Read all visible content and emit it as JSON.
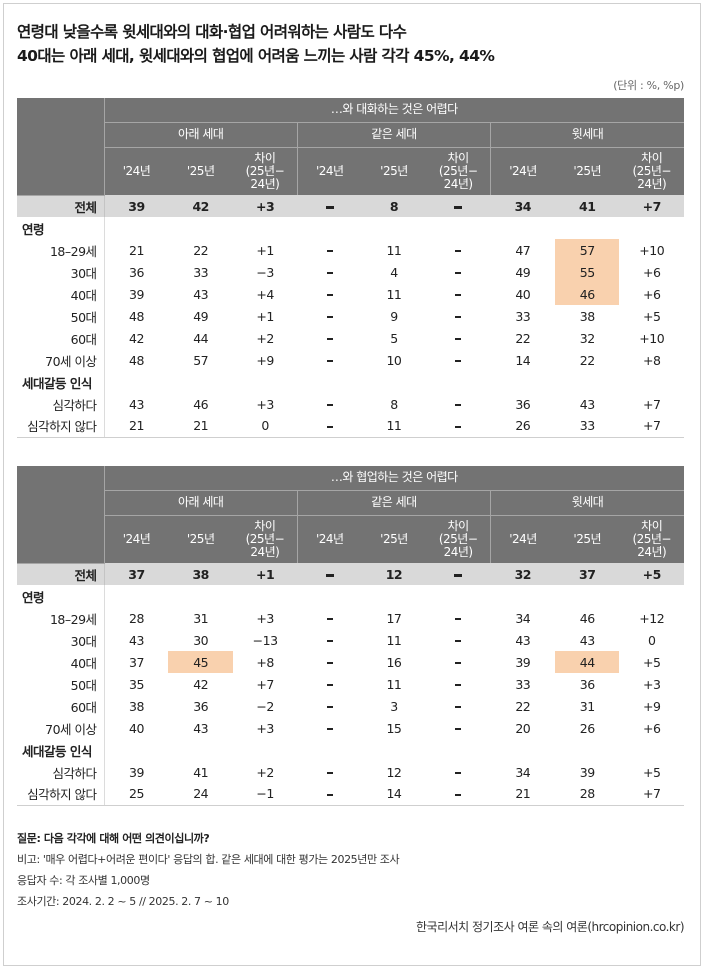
{
  "title_line1": "연령대 낮을수록 윗세대와의 대화·협업 어려워하는 사람도 다수",
  "title_line2": "40대는 아래 세대, 윗세대와의 협업에 어려움 느끼는 사람 각각 45%, 44%",
  "unit": "(단위 : %, %p)",
  "col_groups": [
    "아래 세대",
    "같은 세대",
    "윗세대"
  ],
  "sub_year1": "'24년",
  "sub_year2": "'25년",
  "sub_diff": [
    "차이",
    "(25년−",
    "24년)"
  ],
  "section_age": "연령",
  "section_conflict": "세대갈등 인식",
  "highlight_color": "#f9d1ae",
  "tables": [
    {
      "header": "…와 대화하는 것은 어렵다",
      "rows": [
        {
          "label": "전체",
          "vals": [
            "39",
            "42",
            "+3",
            "–",
            "8",
            "–",
            "34",
            "41",
            "+7"
          ],
          "hl": []
        },
        {
          "label": "18–29세",
          "vals": [
            "21",
            "22",
            "+1",
            "–",
            "11",
            "–",
            "47",
            "57",
            "+10"
          ],
          "hl": [
            7
          ]
        },
        {
          "label": "30대",
          "vals": [
            "36",
            "33",
            "−3",
            "–",
            "4",
            "–",
            "49",
            "55",
            "+6"
          ],
          "hl": [
            7
          ]
        },
        {
          "label": "40대",
          "vals": [
            "39",
            "43",
            "+4",
            "–",
            "11",
            "–",
            "40",
            "46",
            "+6"
          ],
          "hl": [
            7
          ]
        },
        {
          "label": "50대",
          "vals": [
            "48",
            "49",
            "+1",
            "–",
            "9",
            "–",
            "33",
            "38",
            "+5"
          ],
          "hl": []
        },
        {
          "label": "60대",
          "vals": [
            "42",
            "44",
            "+2",
            "–",
            "5",
            "–",
            "22",
            "32",
            "+10"
          ],
          "hl": []
        },
        {
          "label": "70세 이상",
          "vals": [
            "48",
            "57",
            "+9",
            "–",
            "10",
            "–",
            "14",
            "22",
            "+8"
          ],
          "hl": []
        },
        {
          "label": "심각하다",
          "vals": [
            "43",
            "46",
            "+3",
            "–",
            "8",
            "–",
            "36",
            "43",
            "+7"
          ],
          "hl": []
        },
        {
          "label": "심각하지 않다",
          "vals": [
            "21",
            "21",
            "0",
            "–",
            "11",
            "–",
            "26",
            "33",
            "+7"
          ],
          "hl": []
        }
      ]
    },
    {
      "header": "…와 협업하는 것은 어렵다",
      "rows": [
        {
          "label": "전체",
          "vals": [
            "37",
            "38",
            "+1",
            "–",
            "12",
            "–",
            "32",
            "37",
            "+5"
          ],
          "hl": []
        },
        {
          "label": "18–29세",
          "vals": [
            "28",
            "31",
            "+3",
            "–",
            "17",
            "–",
            "34",
            "46",
            "+12"
          ],
          "hl": []
        },
        {
          "label": "30대",
          "vals": [
            "43",
            "30",
            "−13",
            "–",
            "11",
            "–",
            "43",
            "43",
            "0"
          ],
          "hl": []
        },
        {
          "label": "40대",
          "vals": [
            "37",
            "45",
            "+8",
            "–",
            "16",
            "–",
            "39",
            "44",
            "+5"
          ],
          "hl": [
            1,
            7
          ]
        },
        {
          "label": "50대",
          "vals": [
            "35",
            "42",
            "+7",
            "–",
            "11",
            "–",
            "33",
            "36",
            "+3"
          ],
          "hl": []
        },
        {
          "label": "60대",
          "vals": [
            "38",
            "36",
            "−2",
            "–",
            "3",
            "–",
            "22",
            "31",
            "+9"
          ],
          "hl": []
        },
        {
          "label": "70세 이상",
          "vals": [
            "40",
            "43",
            "+3",
            "–",
            "15",
            "–",
            "20",
            "26",
            "+6"
          ],
          "hl": []
        },
        {
          "label": "심각하다",
          "vals": [
            "39",
            "41",
            "+2",
            "–",
            "12",
            "–",
            "34",
            "39",
            "+5"
          ],
          "hl": []
        },
        {
          "label": "심각하지 않다",
          "vals": [
            "25",
            "24",
            "−1",
            "–",
            "14",
            "–",
            "21",
            "28",
            "+7"
          ],
          "hl": []
        }
      ]
    }
  ],
  "notes": {
    "question": "질문: 다음 각각에 대해 어떤 의견이십니까?",
    "remark": "비고: '매우 어렵다+어려운 편이다' 응답의 합. 같은 세대에 대한 평가는 2025년만 조사",
    "respondents": "응답자 수: 각 조사별 1,000명",
    "period": "조사기간: 2024. 2. 2 ~ 5 // 2025. 2. 7 ~ 10"
  },
  "source": "한국리서치 정기조사 여론 속의 여론(hrcopinion.co.kr)"
}
